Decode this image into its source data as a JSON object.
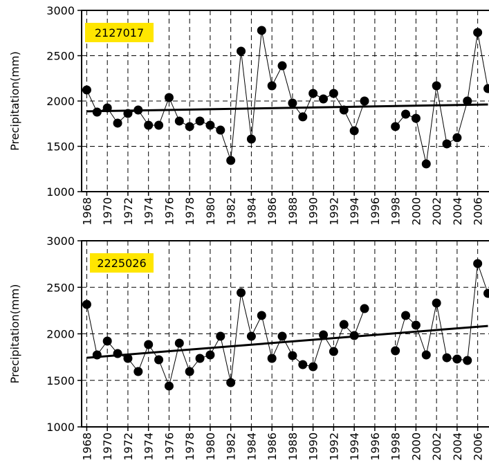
{
  "chart_data": [
    {
      "type": "line",
      "annotation": "2127017",
      "ylabel": "Precipitation(mm)",
      "color": "#000000",
      "annotation_color": "#ffe600",
      "x": [
        1968,
        1969,
        1970,
        1971,
        1972,
        1973,
        1974,
        1975,
        1976,
        1977,
        1978,
        1979,
        1980,
        1981,
        1982,
        1983,
        1984,
        1985,
        1986,
        1987,
        1988,
        1989,
        1990,
        1991,
        1992,
        1993,
        1994,
        1995,
        1996,
        1997,
        1998,
        1999,
        2000,
        2001,
        2002,
        2003,
        2004,
        2005,
        2006,
        2007
      ],
      "values": [
        2122,
        1878,
        1924,
        1756,
        1863,
        1901,
        1733,
        1733,
        2038,
        1779,
        1718,
        1779,
        1733,
        1679,
        1344,
        2550,
        1580,
        2779,
        2168,
        2389,
        1977,
        1825,
        2084,
        2023,
        2084,
        1901,
        1672,
        2000,
        null,
        null,
        1718,
        1855,
        1809,
        1306,
        2168,
        1527,
        1595,
        2000,
        2756,
        2137
      ],
      "trend": {
        "x": [
          1968,
          2007
        ],
        "values": [
          1886,
          1962
        ]
      },
      "xlim": [
        1967.5,
        2007.1
      ],
      "ylim": [
        1000,
        3000
      ],
      "xticks": [
        1968,
        1970,
        1972,
        1974,
        1976,
        1978,
        1980,
        1982,
        1984,
        1986,
        1988,
        1990,
        1992,
        1994,
        1996,
        1998,
        2000,
        2002,
        2004,
        2006
      ],
      "yticks": [
        1000,
        1500,
        2000,
        2500,
        3000
      ],
      "grid": true
    },
    {
      "type": "line",
      "annotation": "2225026",
      "ylabel": "Precipitation(mm)",
      "color": "#000000",
      "annotation_color": "#ffe600",
      "x": [
        1968,
        1969,
        1970,
        1971,
        1972,
        1973,
        1974,
        1975,
        1976,
        1977,
        1978,
        1979,
        1980,
        1981,
        1982,
        1983,
        1984,
        1985,
        1986,
        1987,
        1988,
        1989,
        1990,
        1991,
        1992,
        1993,
        1994,
        1995,
        1996,
        1997,
        1998,
        1999,
        2000,
        2001,
        2002,
        2003,
        2004,
        2005,
        2006,
        2007
      ],
      "values": [
        2316,
        1773,
        1922,
        1788,
        1736,
        1595,
        1885,
        1721,
        1439,
        1900,
        1595,
        1736,
        1773,
        1974,
        1476,
        2442,
        1974,
        2197,
        1736,
        1974,
        1766,
        1669,
        1647,
        1989,
        1810,
        2100,
        1981,
        2271,
        null,
        null,
        1818,
        2197,
        2093,
        1773,
        2331,
        1743,
        1729,
        1714,
        2755,
        2435
      ],
      "trend": {
        "x": [
          1968,
          2007
        ],
        "values": [
          1743,
          2085
        ]
      },
      "xlim": [
        1967.5,
        2007.1
      ],
      "ylim": [
        1000,
        3000
      ],
      "xticks": [
        1968,
        1970,
        1972,
        1974,
        1976,
        1978,
        1980,
        1982,
        1984,
        1986,
        1988,
        1990,
        1992,
        1994,
        1996,
        1998,
        2000,
        2002,
        2004,
        2006
      ],
      "yticks": [
        1000,
        1500,
        2000,
        2500,
        3000
      ],
      "grid": true
    }
  ]
}
